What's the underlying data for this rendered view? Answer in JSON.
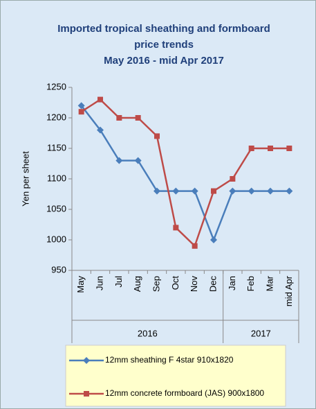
{
  "chart_data": {
    "type": "line",
    "title": [
      "Imported tropical sheathing and formboard",
      "price trends",
      "May 2016 - mid Apr 2017"
    ],
    "y_label": "Yen per sheet",
    "category_groups": [
      {
        "label": "2016",
        "categories": [
          "May",
          "Jun",
          "Jul",
          "Aug",
          "Sep",
          "Oct",
          "Nov",
          "Dec"
        ]
      },
      {
        "label": "2017",
        "categories": [
          "Jan",
          "Feb",
          "Mar",
          "mid Apr"
        ]
      }
    ],
    "series": [
      {
        "name": "12mm sheathing F 4star 910x1820",
        "color": "#4a7ebb",
        "marker": "diamond",
        "values": [
          1220,
          1180,
          1130,
          1130,
          1080,
          1080,
          1080,
          1000,
          1080,
          1080,
          1080,
          1080
        ]
      },
      {
        "name": "12mm concrete formboard (JAS) 900x1800",
        "color": "#be4b48",
        "marker": "square",
        "values": [
          1210,
          1230,
          1200,
          1200,
          1170,
          1020,
          990,
          1080,
          1100,
          1150,
          1150,
          1150
        ]
      }
    ],
    "ylim": [
      950,
      1250
    ],
    "yticks": [
      950,
      1000,
      1050,
      1100,
      1150,
      1200,
      1250
    ],
    "grid": false
  }
}
